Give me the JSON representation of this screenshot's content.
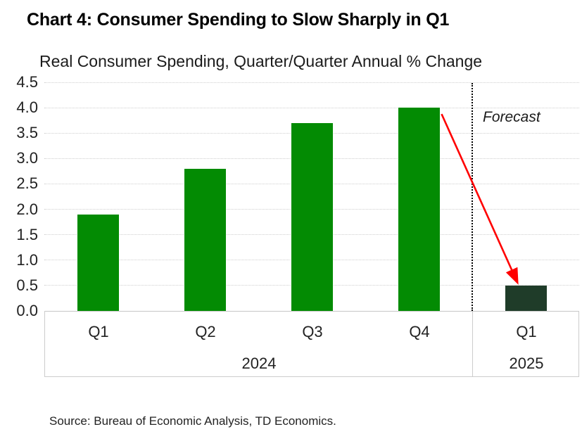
{
  "title": "Chart 4: Consumer Spending to Slow Sharply in Q1",
  "subtitle": "Real Consumer Spending, Quarter/Quarter Annual % Change",
  "source_note": "Source: Bureau of Economic Analysis, TD Economics.",
  "chart_data": {
    "type": "bar",
    "title": "Real Consumer Spending, Quarter/Quarter Annual % Change",
    "categories": [
      "Q1",
      "Q2",
      "Q3",
      "Q4",
      "Q1"
    ],
    "values": [
      1.9,
      2.8,
      3.7,
      4.0,
      0.5
    ],
    "year_groups": [
      {
        "label": "2024",
        "count": 4
      },
      {
        "label": "2025",
        "count": 1
      }
    ],
    "forecast": {
      "label": "Forecast",
      "start_index": 4
    },
    "ylim": [
      0,
      4.5
    ],
    "ytick_step": 0.5,
    "ytick_labels": [
      "0.0",
      "0.5",
      "1.0",
      "1.5",
      "2.0",
      "2.5",
      "3.0",
      "3.5",
      "4.0",
      "4.5"
    ],
    "xlabel": "",
    "ylabel": "",
    "grid": "horizontal-dotted",
    "legend": "none",
    "annotation_arrow": {
      "from_category_index": 3,
      "from_value": 4.0,
      "to_category_index": 4,
      "to_value": 0.5
    },
    "colors": {
      "bar_actual": "#038B03",
      "bar_forecast": "#1F3C29",
      "arrow": "#FF0000",
      "gridline": "#CFCFCF",
      "axis_line": "#C6C6C6",
      "divider": "#000000",
      "text": "#1A1A1A"
    }
  }
}
